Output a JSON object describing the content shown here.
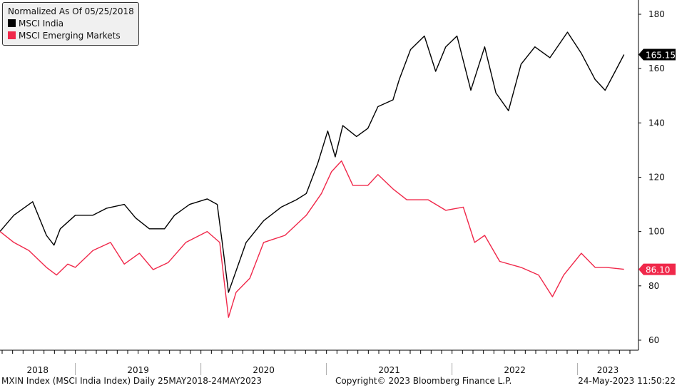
{
  "chart_data": {
    "type": "line",
    "title": "",
    "legend_title": "Normalized As Of 05/25/2018",
    "legend_position": "top-left",
    "xlabel": "",
    "ylabel": "",
    "x_tick_labels": [
      "2018",
      "2019",
      "2020",
      "2021",
      "2022",
      "2023"
    ],
    "y_ticks": [
      60,
      80,
      100,
      120,
      140,
      160,
      180
    ],
    "ylim": [
      58,
      183
    ],
    "xlim": [
      2018.4,
      2023.5
    ],
    "y_axis_side": "right",
    "grid": false,
    "series": [
      {
        "name": "MSCI India",
        "color": "#000000",
        "last_label": "165.15",
        "x": [
          2018.4,
          2018.51,
          2018.66,
          2018.77,
          2018.83,
          2018.88,
          2019.0,
          2019.14,
          2019.25,
          2019.39,
          2019.48,
          2019.59,
          2019.71,
          2019.79,
          2019.91,
          2020.05,
          2020.13,
          2020.17,
          2020.22,
          2020.28,
          2020.36,
          2020.5,
          2020.64,
          2020.76,
          2020.84,
          2020.93,
          2021.01,
          2021.07,
          2021.13,
          2021.24,
          2021.33,
          2021.41,
          2021.53,
          2021.58,
          2021.67,
          2021.78,
          2021.87,
          2021.95,
          2022.04,
          2022.15,
          2022.26,
          2022.35,
          2022.45,
          2022.55,
          2022.66,
          2022.78,
          2022.92,
          2023.03,
          2023.14,
          2023.22,
          2023.3,
          2023.37
        ],
        "y": [
          100,
          106,
          111,
          98.6,
          95,
          101,
          106,
          106,
          108.6,
          110,
          105,
          101,
          101,
          106,
          110,
          112,
          110,
          96,
          77.6,
          85.5,
          96,
          104,
          109,
          111.7,
          114,
          125,
          137,
          127.5,
          139,
          135,
          138,
          146,
          148.5,
          156,
          167,
          172,
          159,
          168,
          172,
          152,
          168,
          151,
          144.5,
          161.6,
          168,
          164,
          173.4,
          165.6,
          156,
          152,
          159,
          165.15
        ]
      },
      {
        "name": "MSCI Emerging Markets",
        "color": "#f0284a",
        "last_label": "86.10",
        "x": [
          2018.4,
          2018.51,
          2018.63,
          2018.77,
          2018.85,
          2018.94,
          2019.0,
          2019.14,
          2019.28,
          2019.39,
          2019.51,
          2019.62,
          2019.74,
          2019.88,
          2020.05,
          2020.15,
          2020.19,
          2020.22,
          2020.28,
          2020.39,
          2020.5,
          2020.67,
          2020.84,
          2020.96,
          2021.04,
          2021.12,
          2021.21,
          2021.33,
          2021.41,
          2021.53,
          2021.64,
          2021.81,
          2021.95,
          2022.09,
          2022.18,
          2022.26,
          2022.38,
          2022.55,
          2022.69,
          2022.8,
          2022.89,
          2023.03,
          2023.14,
          2023.23,
          2023.37
        ],
        "y": [
          100,
          96,
          93,
          86.8,
          84,
          88,
          86.8,
          93,
          96,
          88,
          92,
          86,
          88.6,
          96,
          100,
          96,
          80,
          68.4,
          77.6,
          82.8,
          96,
          98.6,
          106,
          114,
          122,
          126,
          117,
          117,
          121,
          115.7,
          111.7,
          111.7,
          107.8,
          109,
          96,
          98.6,
          89,
          86.8,
          84,
          76,
          84,
          92,
          86.8,
          86.8,
          86.1
        ]
      }
    ]
  },
  "footer": {
    "left": "MXIN Index (MSCI India Index)  Daily 25MAY2018-24MAY2023",
    "center": "Copyright© 2023 Bloomberg Finance L.P.",
    "right": "24-May-2023 11:50:22"
  }
}
